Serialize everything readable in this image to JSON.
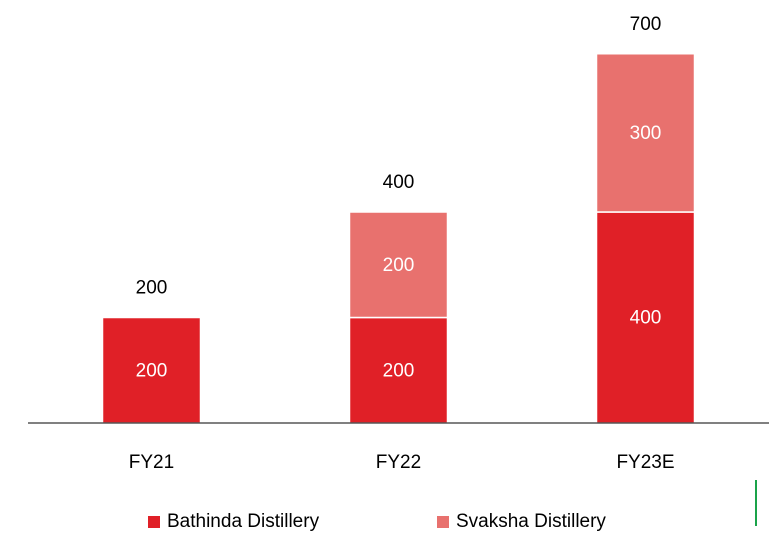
{
  "chart_data": {
    "type": "stacked_bar",
    "categories": [
      "FY21",
      "FY22",
      "FY23E"
    ],
    "series": [
      {
        "name": "Bathinda Distillery",
        "color": "#e02027",
        "values": [
          200,
          200,
          400
        ]
      },
      {
        "name": "Svaksha Distillery",
        "color": "#e8716e",
        "values": [
          null,
          200,
          300
        ]
      }
    ],
    "totals": [
      200,
      400,
      700
    ],
    "ylim": [
      0,
      800
    ]
  }
}
